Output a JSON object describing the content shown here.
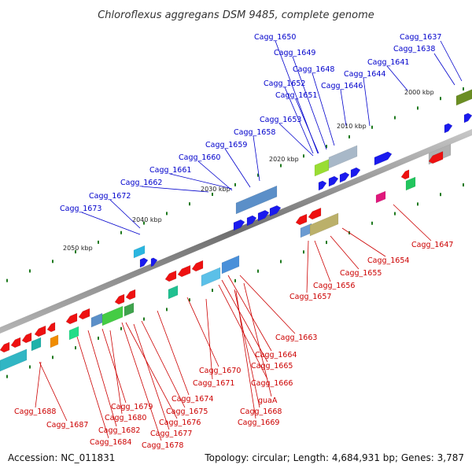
{
  "title": "Chloroflexus aggregans DSM 9485, complete genome",
  "footer": {
    "accession": "Accession: NC_011831",
    "summary": "Topology: circular; Length: 4,684,931 bp; Genes: 3,787"
  },
  "ticks": [
    "2000 kbp",
    "2010 kbp",
    "2020 kbp",
    "2030 kbp",
    "2040 kbp",
    "2050 kbp"
  ],
  "top_labels": [
    "Cagg_1650",
    "Cagg_1637",
    "Cagg_1649",
    "Cagg_1638",
    "Cagg_1648",
    "Cagg_1641",
    "Cagg_1644",
    "Cagg_1652",
    "Cagg_1646",
    "Cagg_1651",
    "Cagg_1653",
    "Cagg_1658",
    "Cagg_1659",
    "Cagg_1660",
    "Cagg_1661",
    "Cagg_1662",
    "Cagg_1672",
    "Cagg_1673"
  ],
  "bottom_labels": [
    "Cagg_1647",
    "Cagg_1654",
    "Cagg_1655",
    "Cagg_1656",
    "Cagg_1657",
    "Cagg_1663",
    "Cagg_1664",
    "Cagg_1665",
    "Cagg_1666",
    "Cagg_1670",
    "Cagg_1671",
    "guaA",
    "Cagg_1674",
    "Cagg_1668",
    "Cagg_1675",
    "Cagg_1669",
    "Cagg_1679",
    "Cagg_1676",
    "Cagg_1680",
    "Cagg_1688",
    "Cagg_1687",
    "Cagg_1682",
    "Cagg_1677",
    "Cagg_1684",
    "Cagg_1678"
  ],
  "colors": {
    "backbone": "#8a8a8a",
    "forward_gene": "#1a1aee",
    "reverse_gene": "#ee1111",
    "tick": "#1f7a1f",
    "top_label": "#0000cc",
    "bottom_label": "#cc0000"
  }
}
